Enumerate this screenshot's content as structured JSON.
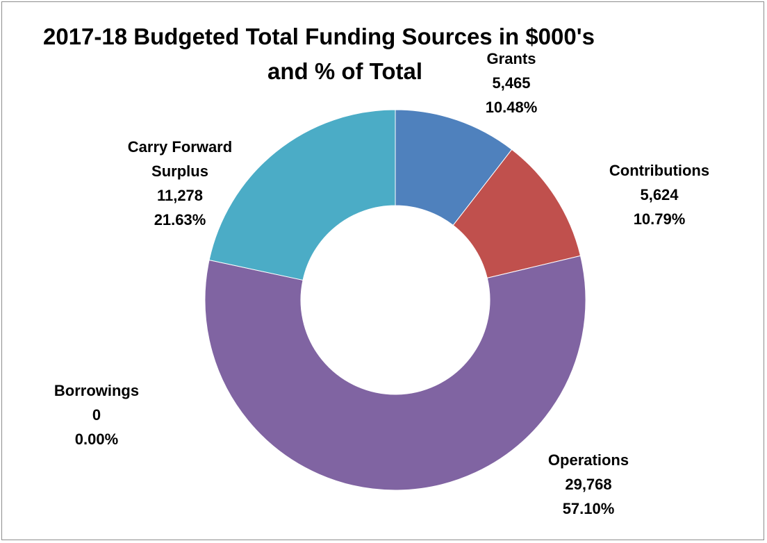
{
  "chart_data": {
    "type": "pie",
    "variant": "doughnut",
    "title_line1": "2017-18 Budgeted Total Funding Sources in  $000's",
    "title_line2": "and % of Total",
    "slices": [
      {
        "name": "Grants",
        "value_text": "5,465",
        "value": 5465,
        "pct_text": "10.48%",
        "pct": 10.48,
        "color": "#4f81bd",
        "label_lines": [
          "Grants"
        ]
      },
      {
        "name": "Contributions",
        "value_text": "5,624",
        "value": 5624,
        "pct_text": "10.79%",
        "pct": 10.79,
        "color": "#c0504d",
        "label_lines": [
          "Contributions"
        ]
      },
      {
        "name": "Operations",
        "value_text": "29,768",
        "value": 29768,
        "pct_text": "57.10%",
        "pct": 57.1,
        "color": "#8064a2",
        "label_lines": [
          "Operations"
        ]
      },
      {
        "name": "Borrowings",
        "value_text": "0",
        "value": 0,
        "pct_text": "0.00%",
        "pct": 0.0,
        "color": "#9bbb59",
        "label_lines": [
          "Borrowings"
        ]
      },
      {
        "name": "Carry Forward Surplus",
        "value_text": "11,278",
        "value": 11278,
        "pct_text": "21.63%",
        "pct": 21.63,
        "color": "#4bacc6",
        "label_lines": [
          "Carry Forward",
          "Surplus"
        ]
      }
    ],
    "legend": "none",
    "start_angle": "12 o'clock, clockwise"
  }
}
